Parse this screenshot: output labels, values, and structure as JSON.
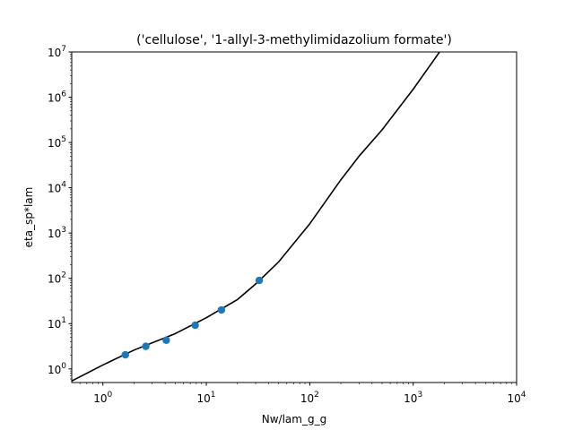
{
  "chart_data": {
    "type": "scatter",
    "title": "('cellulose', '1-allyl-3-methylimidazolium formate')",
    "xlabel": "Nw/lam_g_g",
    "ylabel": "eta_sp*lam",
    "xscale": "log",
    "yscale": "log",
    "xlim": [
      0.5,
      10000
    ],
    "ylim": [
      0.5,
      10000000
    ],
    "x_ticks": [
      {
        "base": "10",
        "exp": "0",
        "value": 1
      },
      {
        "base": "10",
        "exp": "1",
        "value": 10
      },
      {
        "base": "10",
        "exp": "2",
        "value": 100
      },
      {
        "base": "10",
        "exp": "3",
        "value": 1000
      },
      {
        "base": "10",
        "exp": "4",
        "value": 10000
      }
    ],
    "y_ticks": [
      {
        "base": "10",
        "exp": "0",
        "value": 1
      },
      {
        "base": "10",
        "exp": "1",
        "value": 10
      },
      {
        "base": "10",
        "exp": "2",
        "value": 100
      },
      {
        "base": "10",
        "exp": "3",
        "value": 1000
      },
      {
        "base": "10",
        "exp": "4",
        "value": 10000
      },
      {
        "base": "10",
        "exp": "5",
        "value": 100000
      },
      {
        "base": "10",
        "exp": "6",
        "value": 1000000
      },
      {
        "base": "10",
        "exp": "7",
        "value": 10000000
      }
    ],
    "grid": false,
    "series": [
      {
        "kind": "scatter",
        "color": "#1f77b4",
        "points": [
          {
            "x": 1.65,
            "y": 2.05
          },
          {
            "x": 2.6,
            "y": 3.15
          },
          {
            "x": 4.1,
            "y": 4.3
          },
          {
            "x": 7.8,
            "y": 9.2
          },
          {
            "x": 14.0,
            "y": 20.0
          },
          {
            "x": 32.5,
            "y": 90.0
          }
        ]
      },
      {
        "kind": "line",
        "color": "#000000",
        "points": [
          {
            "x": 0.5,
            "y": 0.54
          },
          {
            "x": 1,
            "y": 1.22
          },
          {
            "x": 2,
            "y": 2.6
          },
          {
            "x": 5,
            "y": 6.0
          },
          {
            "x": 10,
            "y": 13.5
          },
          {
            "x": 20,
            "y": 34
          },
          {
            "x": 30,
            "y": 75
          },
          {
            "x": 50,
            "y": 230
          },
          {
            "x": 100,
            "y": 1600
          },
          {
            "x": 200,
            "y": 15000
          },
          {
            "x": 300,
            "y": 50000
          },
          {
            "x": 500,
            "y": 190000
          },
          {
            "x": 1000,
            "y": 1500000
          },
          {
            "x": 1800,
            "y": 10000000
          }
        ]
      }
    ]
  }
}
